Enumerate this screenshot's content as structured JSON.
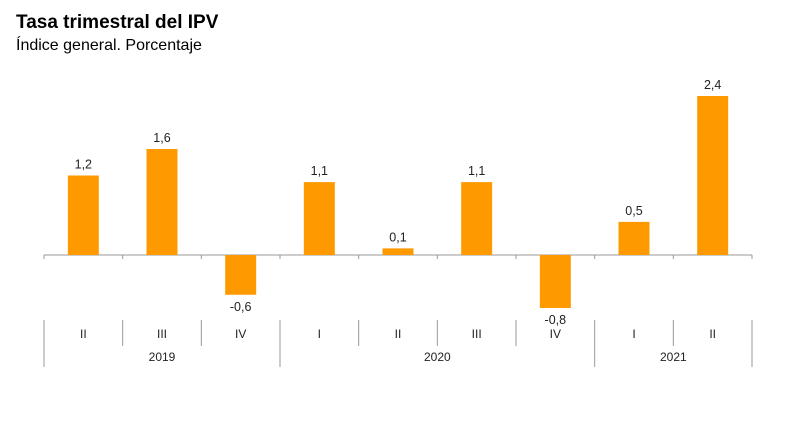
{
  "title": "Tasa trimestral del IPV",
  "subtitle": "Índice general. Porcentaje",
  "colors": {
    "bar": "#FF9900",
    "axis": "#999999"
  },
  "chart_data": {
    "type": "bar",
    "title": "Tasa trimestral del IPV",
    "subtitle": "Índice general. Porcentaje",
    "categories": [
      "II",
      "III",
      "IV",
      "I",
      "II",
      "III",
      "IV",
      "I",
      "II"
    ],
    "years": [
      {
        "label": "2019",
        "count": 3
      },
      {
        "label": "2020",
        "count": 4
      },
      {
        "label": "2021",
        "count": 2
      }
    ],
    "values": [
      1.2,
      1.6,
      -0.6,
      1.1,
      0.1,
      1.1,
      -0.8,
      0.5,
      2.4
    ],
    "value_labels": [
      "1,2",
      "1,6",
      "-0,6",
      "1,1",
      "0,1",
      "1,1",
      "-0,8",
      "0,5",
      "2,4"
    ],
    "xlabel": "",
    "ylabel": "",
    "grid": false
  }
}
